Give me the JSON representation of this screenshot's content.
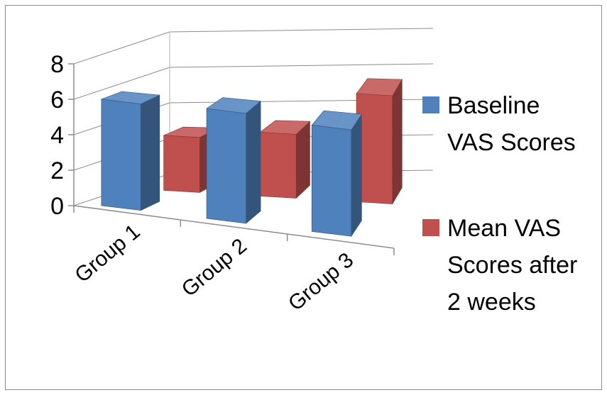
{
  "chart_data": {
    "type": "bar",
    "categories": [
      "Group 1",
      "Group 2",
      "Group 3"
    ],
    "series": [
      {
        "name": "Baseline VAS Scores",
        "values": [
          6.0,
          6.2,
          6.0
        ],
        "color": "#4F81BD",
        "legend_lines": [
          "Baseline",
          "VAS Scores"
        ]
      },
      {
        "name": "Mean VAS Scores after 2 weeks",
        "values": [
          3.1,
          3.6,
          6.1
        ],
        "color": "#C0504D",
        "legend_lines": [
          "Mean VAS",
          "Scores after",
          "2 weeks"
        ]
      }
    ],
    "ylim": [
      0,
      8
    ],
    "yticks": [
      0,
      2,
      4,
      6,
      8
    ],
    "grid": true,
    "legend_position": "right",
    "projection": "3d"
  }
}
